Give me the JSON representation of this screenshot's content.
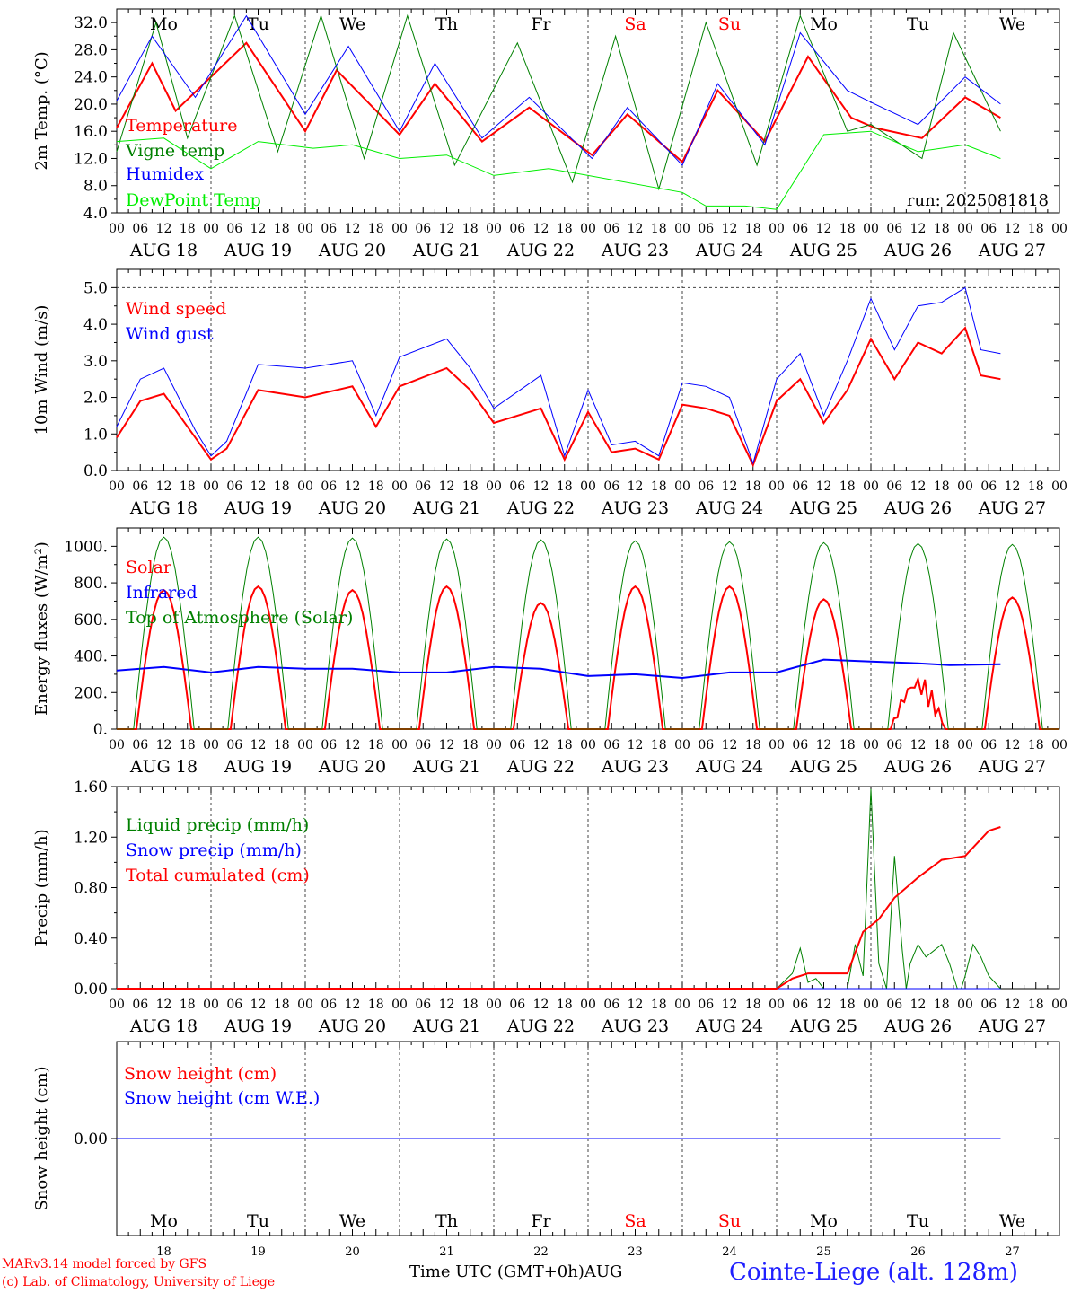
{
  "footer": {
    "model": "MARv3.14 model forced by GFS",
    "lab": "(c) Lab. of Climatology, University of Liege",
    "time_axis": "Time UTC (GMT+0h)AUG",
    "station": "Cointe-Liege (alt. 128m)"
  },
  "chart_data": {
    "type": "line",
    "run_label": "run: 2025081818",
    "hour_ticks": [
      "00",
      "06",
      "12",
      "18"
    ],
    "end_tick": "00",
    "date_labels": [
      "AUG 18",
      "AUG 19",
      "AUG 20",
      "AUG 21",
      "AUG 22",
      "AUG 23",
      "AUG 24",
      "AUG 25",
      "AUG 26",
      "AUG 27"
    ],
    "day_names": [
      "Mo",
      "Tu",
      "We",
      "Th",
      "Fr",
      "Sa",
      "Su",
      "Mo",
      "Tu",
      "We"
    ],
    "day_numbers": [
      "18",
      "19",
      "20",
      "21",
      "22",
      "23",
      "24",
      "25",
      "26",
      "27"
    ],
    "weekend_indices": [
      5,
      6
    ],
    "colors": {
      "red": "#ff0000",
      "blue": "#0000ff",
      "darkgreen": "#008000",
      "lightgreen": "#00ee00",
      "weekend": "#ff0000"
    },
    "panels": [
      {
        "id": "temp",
        "ylabel": "2m Temp. (°C)",
        "ylim": [
          4,
          34
        ],
        "ticks": [
          4,
          8,
          12,
          16,
          20,
          24,
          28,
          32
        ],
        "tick_labels": [
          "4.0",
          "8.0",
          "12.0",
          "16.0",
          "20.0",
          "24.0",
          "28.0",
          "32.0"
        ],
        "series": [
          {
            "name": "Temperature",
            "color": "red",
            "width": 2,
            "x": [
              0,
              9,
              15,
              33,
              48,
              56,
              72,
              81,
              93,
              105,
              121,
              130,
              144,
              153,
              165,
              176,
              187,
              193,
              205,
              216,
              225
            ],
            "y": [
              16.5,
              26,
              19,
              29,
              16,
              25,
              15.5,
              23,
              14.5,
              19.5,
              12.5,
              18.5,
              11.5,
              22,
              14.5,
              27,
              18,
              16.5,
              15,
              21,
              18
            ]
          },
          {
            "name": "Vigne temp",
            "color": "darkgreen",
            "width": 1,
            "x": [
              0,
              10,
              18,
              30,
              41,
              52,
              63,
              74,
              86,
              102,
              116,
              127,
              138,
              150,
              163,
              174,
              186,
              192,
              205,
              213,
              225
            ],
            "y": [
              13,
              32,
              15,
              33,
              13,
              33,
              12,
              33,
              11,
              29,
              8.5,
              30,
              7.5,
              32,
              11,
              33,
              16,
              17,
              12,
              30.5,
              16
            ]
          },
          {
            "name": "Humidex",
            "color": "blue",
            "width": 1,
            "x": [
              0,
              9,
              20,
              33,
              48,
              59,
              72,
              81,
              93,
              105,
              121,
              130,
              144,
              153,
              165,
              174,
              186,
              193,
              204,
              216,
              225
            ],
            "y": [
              20.5,
              30,
              21,
              33,
              18.5,
              28.5,
              16,
              26,
              15,
              21,
              12,
              19.5,
              11,
              23,
              14,
              30.5,
              22,
              20,
              17,
              24,
              20
            ]
          },
          {
            "name": "DewPoint Temp",
            "color": "lightgreen",
            "width": 1,
            "x": [
              0,
              12,
              24,
              36,
              50,
              60,
              72,
              84,
              96,
              110,
              120,
              144,
              150,
              160,
              168,
              180,
              192,
              204,
              216,
              225
            ],
            "y": [
              14.5,
              15,
              10.5,
              14.5,
              13.5,
              14,
              12,
              12.5,
              9.5,
              10.5,
              9.5,
              7,
              5,
              5,
              4.5,
              15.5,
              16,
              13,
              14,
              12
            ]
          }
        ]
      },
      {
        "id": "wind",
        "ylabel": "10m Wind (m/s)",
        "ylim": [
          0,
          5.5
        ],
        "ticks": [
          0,
          1,
          2,
          3,
          4,
          5
        ],
        "tick_labels": [
          "0.0",
          "1.0",
          "2.0",
          "3.0",
          "4.0",
          "5.0"
        ],
        "dashed_at": 5,
        "series": [
          {
            "name": "Wind speed",
            "color": "red",
            "width": 2,
            "x": [
              0,
              6,
              12,
              20,
              24,
              28,
              36,
              48,
              60,
              66,
              72,
              84,
              90,
              96,
              108,
              114,
              120,
              126,
              132,
              138,
              144,
              150,
              156,
              162,
              168,
              174,
              180,
              186,
              192,
              198,
              204,
              210,
              216,
              220,
              225
            ],
            "y": [
              0.9,
              1.9,
              2.1,
              0.9,
              0.3,
              0.6,
              2.2,
              2.0,
              2.3,
              1.2,
              2.3,
              2.8,
              2.2,
              1.3,
              1.7,
              0.3,
              1.6,
              0.5,
              0.6,
              0.3,
              1.8,
              1.7,
              1.5,
              0.15,
              1.9,
              2.5,
              1.3,
              2.2,
              3.6,
              2.5,
              3.5,
              3.2,
              3.9,
              2.6,
              2.5
            ]
          },
          {
            "name": "Wind gust",
            "color": "blue",
            "width": 1,
            "x": [
              0,
              6,
              12,
              20,
              24,
              28,
              36,
              48,
              60,
              66,
              72,
              84,
              90,
              96,
              108,
              114,
              120,
              126,
              132,
              138,
              144,
              150,
              156,
              162,
              168,
              174,
              180,
              186,
              192,
              198,
              204,
              210,
              216,
              220,
              225
            ],
            "y": [
              1.2,
              2.5,
              2.8,
              1.1,
              0.4,
              0.8,
              2.9,
              2.8,
              3.0,
              1.5,
              3.1,
              3.6,
              2.8,
              1.7,
              2.6,
              0.4,
              2.2,
              0.7,
              0.8,
              0.4,
              2.4,
              2.3,
              2.0,
              0.2,
              2.5,
              3.2,
              1.5,
              3.0,
              4.7,
              3.3,
              4.5,
              4.6,
              5.0,
              3.3,
              3.2
            ]
          }
        ]
      },
      {
        "id": "energy",
        "ylabel": "Energy fluxes (W/m²)",
        "ylim": [
          0,
          1100
        ],
        "ticks": [
          0,
          200,
          400,
          600,
          800,
          1000
        ],
        "tick_labels": [
          "0.",
          "200.",
          "400.",
          "600.",
          "800.",
          "1000."
        ],
        "series": [
          {
            "name": "Solar",
            "color": "red",
            "width": 2,
            "daily_peak": [
              760,
              780,
              760,
              780,
              690,
              780,
              780,
              710,
              300,
              720
            ]
          },
          {
            "name": "Infrared",
            "color": "blue",
            "width": 2,
            "x": [
              0,
              12,
              24,
              36,
              48,
              60,
              72,
              84,
              96,
              108,
              120,
              132,
              144,
              156,
              168,
              180,
              192,
              204,
              212,
              225
            ],
            "y": [
              320,
              340,
              310,
              340,
              330,
              330,
              310,
              310,
              340,
              330,
              290,
              300,
              280,
              310,
              310,
              380,
              370,
              360,
              350,
              355
            ]
          },
          {
            "name": "Top of Atmosphere (Solar)",
            "color": "darkgreen",
            "width": 1,
            "daily_peak": [
              1050,
              1050,
              1045,
              1040,
              1035,
              1030,
              1025,
              1020,
              1015,
              1010
            ]
          }
        ]
      },
      {
        "id": "precip",
        "ylabel": "Precip (mm/h)",
        "ylim": [
          0,
          1.6
        ],
        "ticks": [
          0,
          0.4,
          0.8,
          1.2,
          1.6
        ],
        "tick_labels": [
          "0.00",
          "0.40",
          "0.80",
          "1.20",
          "1.60"
        ],
        "series": [
          {
            "name": "Liquid precip (mm/h)",
            "color": "darkgreen",
            "width": 1,
            "x": [
              0,
              168,
              172,
              174,
              176,
              178,
              180,
              182,
              186,
              188,
              190,
              192,
              194,
              196,
              198,
              200,
              201,
              202,
              204,
              206,
              210,
              212,
              214,
              215,
              216,
              218,
              220,
              222,
              225
            ],
            "y": [
              0,
              0,
              0.12,
              0.32,
              0.05,
              0.08,
              0,
              0,
              0,
              0.35,
              0.1,
              1.58,
              0.2,
              0,
              1.05,
              0.3,
              0,
              0.2,
              0.35,
              0.25,
              0.35,
              0.2,
              0,
              0,
              0.1,
              0.35,
              0.25,
              0.1,
              0
            ]
          },
          {
            "name": "Snow precip (mm/h)",
            "color": "blue",
            "width": 1,
            "x": [
              0,
              225
            ],
            "y": [
              0,
              0
            ]
          },
          {
            "name": "Total cumulated (cm)",
            "color": "red",
            "width": 2,
            "x": [
              0,
              168,
              172,
              176,
              186,
              190,
              194,
              198,
              204,
              210,
              216,
              222,
              225
            ],
            "y": [
              0,
              0,
              0.08,
              0.12,
              0.12,
              0.45,
              0.55,
              0.72,
              0.88,
              1.02,
              1.05,
              1.25,
              1.28
            ]
          }
        ]
      },
      {
        "id": "snow",
        "ylabel": "Snow height (cm)",
        "ylim": [
          -1,
          1
        ],
        "ticks": [
          0
        ],
        "tick_labels": [
          "0.00"
        ],
        "series": [
          {
            "name": "Snow height (cm)",
            "color": "red",
            "width": 1,
            "x": [
              0,
              225
            ],
            "y": [
              0,
              0
            ]
          },
          {
            "name": "Snow height (cm W.E.)",
            "color": "blue",
            "width": 1,
            "x": [
              0,
              225
            ],
            "y": [
              0,
              0
            ]
          }
        ]
      }
    ]
  }
}
